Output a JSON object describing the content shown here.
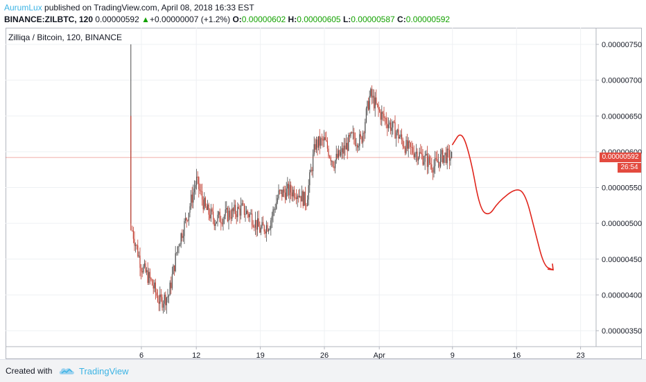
{
  "header": {
    "author": "AurumLux",
    "published": "published on TradingView.com, April 08, 2018 16:33 EST",
    "symbol": "BINANCE:ZILBTC, 120",
    "last": "0.00000592",
    "change_arrow": "▲",
    "change": "+0.00000007 (+1.2%)",
    "o_label": "O:",
    "o_value": "0.00000602",
    "h_label": "H:",
    "h_value": "0.00000605",
    "l_label": "L:",
    "l_value": "0.00000587",
    "c_label": "C:",
    "c_value": "0.00000592"
  },
  "footer": {
    "created_with": "Created with",
    "brand": "TradingView",
    "brand_icon": "tradingview-cloud-icon"
  },
  "price_tag": {
    "value": "0.00000592",
    "countdown": "26:54"
  },
  "colors": {
    "up": "#4a4a4a",
    "down": "#c0392b",
    "annotation": "#e0241b",
    "last_price": "#e34a3f",
    "author": "#3bb3e4",
    "ohlc_values": "#13a100"
  },
  "chart_data": {
    "type": "candlestick",
    "title": "Zilliqa / Bitcoin, 120, BINANCE",
    "y_ticks": [
      "0.00000750",
      "0.00000700",
      "0.00000650",
      "0.00000600",
      "0.00000550",
      "0.00000500",
      "0.00000450",
      "0.00000400",
      "0.00000350"
    ],
    "x_ticks": [
      "6",
      "12",
      "19",
      "26",
      "Apr",
      "9",
      "16",
      "23"
    ],
    "ylim": [
      3.3e-06,
      7.7e-06
    ],
    "last_price": 5.92e-06,
    "grid": true,
    "series": [
      {
        "name": "price",
        "points": [
          [
            "Mar 5",
            4.9e-06
          ],
          [
            "Mar 6",
            4.4e-06
          ],
          [
            "Mar 7",
            4.2e-06
          ],
          [
            "Mar 8",
            3.9e-06
          ],
          [
            "Mar 9",
            4e-06
          ],
          [
            "Mar 10",
            4.7e-06
          ],
          [
            "Mar 11",
            5.1e-06
          ],
          [
            "Mar 12",
            5.6e-06
          ],
          [
            "Mar 13",
            5.2e-06
          ],
          [
            "Mar 14",
            5.05e-06
          ],
          [
            "Mar 15",
            5.1e-06
          ],
          [
            "Mar 16",
            5.15e-06
          ],
          [
            "Mar 17",
            5.2e-06
          ],
          [
            "Mar 18",
            5.1e-06
          ],
          [
            "Mar 19",
            4.9e-06
          ],
          [
            "Mar 20",
            5e-06
          ],
          [
            "Mar 21",
            5.4e-06
          ],
          [
            "Mar 22",
            5.45e-06
          ],
          [
            "Mar 23",
            5.45e-06
          ],
          [
            "Mar 24",
            5.3e-06
          ],
          [
            "Mar 25",
            6.1e-06
          ],
          [
            "Mar 26",
            6.15e-06
          ],
          [
            "Mar 27",
            5.85e-06
          ],
          [
            "Mar 28",
            6e-06
          ],
          [
            "Mar 29",
            6.2e-06
          ],
          [
            "Mar 30",
            6.15e-06
          ],
          [
            "Mar 31",
            6.8e-06
          ],
          [
            "Apr 1",
            6.55e-06
          ],
          [
            "Apr 2",
            6.4e-06
          ],
          [
            "Apr 3",
            6.25e-06
          ],
          [
            "Apr 4",
            6.05e-06
          ],
          [
            "Apr 5",
            6e-06
          ],
          [
            "Apr 6",
            5.9e-06
          ],
          [
            "Apr 7",
            5.8e-06
          ],
          [
            "Apr 8",
            5.95e-06
          ],
          [
            "Apr 9",
            5.92e-06
          ]
        ]
      },
      {
        "name": "projection",
        "points": [
          [
            "Apr 9",
            6.1e-06
          ],
          [
            "Apr 10",
            6.3e-06
          ],
          [
            "Apr 11",
            5.9e-06
          ],
          [
            "Apr 12",
            5.2e-06
          ],
          [
            "Apr 13",
            5.1e-06
          ],
          [
            "Apr 14",
            5.3e-06
          ],
          [
            "Apr 16",
            5.5e-06
          ],
          [
            "Apr 17",
            5.4e-06
          ],
          [
            "Apr 18",
            4.9e-06
          ],
          [
            "Apr 19",
            4.4e-06
          ],
          [
            "Apr 20",
            4.35e-06
          ]
        ]
      }
    ]
  }
}
